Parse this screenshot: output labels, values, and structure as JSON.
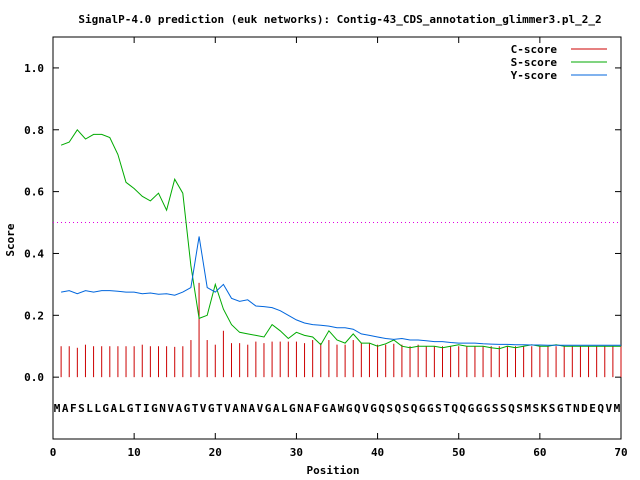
{
  "chart_data": {
    "type": "line",
    "title": "SignalP-4.0 prediction (euk networks): Contig-43_CDS_annotation_glimmer3.pl_2_2",
    "xlabel": "Position",
    "ylabel": "Score",
    "xlim": [
      0,
      70
    ],
    "ylim": [
      -0.2,
      1.1
    ],
    "xticks": [
      0,
      10,
      20,
      30,
      40,
      50,
      60,
      70
    ],
    "yticks": [
      0.0,
      0.2,
      0.4,
      0.6,
      0.8,
      1.0
    ],
    "xtick_labels": [
      "0",
      "10",
      "20",
      "30",
      "40",
      "50",
      "60",
      "70"
    ],
    "ytick_labels": [
      "0.0",
      "0.2",
      "0.4",
      "0.6",
      "0.8",
      "1.0"
    ],
    "threshold": 0.5,
    "sequence": "MAFSLLGALGTIGNVAGTVGTVANAVGALGNAFGAWGQVGQSQSQGGSTQQGGGSSQSMSKSGTNDEQVM",
    "legend_position": "top-right",
    "series": [
      {
        "name": "C-score",
        "color": "#cc0000",
        "style": "impulses",
        "x": [
          1,
          2,
          3,
          4,
          5,
          6,
          7,
          8,
          9,
          10,
          11,
          12,
          13,
          14,
          15,
          16,
          17,
          18,
          19,
          20,
          21,
          22,
          23,
          24,
          25,
          26,
          27,
          28,
          29,
          30,
          31,
          32,
          33,
          34,
          35,
          36,
          37,
          38,
          39,
          40,
          41,
          42,
          43,
          44,
          45,
          46,
          47,
          48,
          49,
          50,
          51,
          52,
          53,
          54,
          55,
          56,
          57,
          58,
          59,
          60,
          61,
          62,
          63,
          64,
          65,
          66,
          67,
          68,
          69,
          70
        ],
        "values": [
          0.1,
          0.1,
          0.095,
          0.105,
          0.1,
          0.1,
          0.1,
          0.1,
          0.1,
          0.1,
          0.105,
          0.1,
          0.1,
          0.1,
          0.098,
          0.1,
          0.12,
          0.305,
          0.12,
          0.105,
          0.15,
          0.11,
          0.11,
          0.105,
          0.115,
          0.11,
          0.115,
          0.115,
          0.115,
          0.115,
          0.11,
          0.12,
          0.11,
          0.12,
          0.105,
          0.105,
          0.12,
          0.11,
          0.11,
          0.105,
          0.105,
          0.108,
          0.105,
          0.1,
          0.105,
          0.1,
          0.1,
          0.1,
          0.1,
          0.1,
          0.1,
          0.1,
          0.1,
          0.1,
          0.1,
          0.1,
          0.1,
          0.1,
          0.1,
          0.1,
          0.1,
          0.1,
          0.1,
          0.1,
          0.1,
          0.1,
          0.1,
          0.1,
          0.1,
          0.1
        ]
      },
      {
        "name": "S-score",
        "color": "#00aa00",
        "style": "line",
        "x": [
          1,
          2,
          3,
          4,
          5,
          6,
          7,
          8,
          9,
          10,
          11,
          12,
          13,
          14,
          15,
          16,
          17,
          18,
          19,
          20,
          21,
          22,
          23,
          24,
          25,
          26,
          27,
          28,
          29,
          30,
          31,
          32,
          33,
          34,
          35,
          36,
          37,
          38,
          39,
          40,
          41,
          42,
          43,
          44,
          45,
          46,
          47,
          48,
          49,
          50,
          51,
          52,
          53,
          54,
          55,
          56,
          57,
          58,
          59,
          60,
          61,
          62,
          63,
          64,
          65,
          66,
          67,
          68,
          69,
          70
        ],
        "values": [
          0.75,
          0.76,
          0.8,
          0.77,
          0.785,
          0.785,
          0.775,
          0.72,
          0.63,
          0.61,
          0.585,
          0.57,
          0.595,
          0.54,
          0.64,
          0.595,
          0.36,
          0.19,
          0.2,
          0.3,
          0.22,
          0.17,
          0.145,
          0.14,
          0.135,
          0.13,
          0.17,
          0.15,
          0.125,
          0.145,
          0.135,
          0.13,
          0.105,
          0.15,
          0.12,
          0.11,
          0.14,
          0.11,
          0.11,
          0.1,
          0.108,
          0.12,
          0.1,
          0.095,
          0.1,
          0.1,
          0.1,
          0.095,
          0.1,
          0.105,
          0.1,
          0.1,
          0.1,
          0.095,
          0.092,
          0.1,
          0.095,
          0.1,
          0.105,
          0.1,
          0.1,
          0.105,
          0.1,
          0.1,
          0.1,
          0.1,
          0.1,
          0.1,
          0.1,
          0.1
        ]
      },
      {
        "name": "Y-score",
        "color": "#0066dd",
        "style": "line",
        "x": [
          1,
          2,
          3,
          4,
          5,
          6,
          7,
          8,
          9,
          10,
          11,
          12,
          13,
          14,
          15,
          16,
          17,
          18,
          19,
          20,
          21,
          22,
          23,
          24,
          25,
          26,
          27,
          28,
          29,
          30,
          31,
          32,
          33,
          34,
          35,
          36,
          37,
          38,
          39,
          40,
          41,
          42,
          43,
          44,
          45,
          46,
          47,
          48,
          49,
          50,
          51,
          52,
          53,
          54,
          55,
          56,
          57,
          58,
          59,
          60,
          61,
          62,
          63,
          64,
          65,
          66,
          67,
          68,
          69,
          70
        ],
        "values": [
          0.275,
          0.28,
          0.27,
          0.28,
          0.275,
          0.28,
          0.28,
          0.278,
          0.275,
          0.275,
          0.27,
          0.272,
          0.268,
          0.27,
          0.265,
          0.275,
          0.29,
          0.455,
          0.29,
          0.275,
          0.3,
          0.255,
          0.245,
          0.25,
          0.23,
          0.228,
          0.225,
          0.215,
          0.2,
          0.185,
          0.175,
          0.17,
          0.168,
          0.165,
          0.16,
          0.16,
          0.155,
          0.14,
          0.135,
          0.13,
          0.125,
          0.122,
          0.125,
          0.12,
          0.12,
          0.118,
          0.115,
          0.115,
          0.112,
          0.11,
          0.11,
          0.11,
          0.108,
          0.107,
          0.106,
          0.106,
          0.105,
          0.105,
          0.104,
          0.104,
          0.103,
          0.103,
          0.103,
          0.103,
          0.103,
          0.103,
          0.103,
          0.103,
          0.103,
          0.103
        ]
      }
    ]
  }
}
